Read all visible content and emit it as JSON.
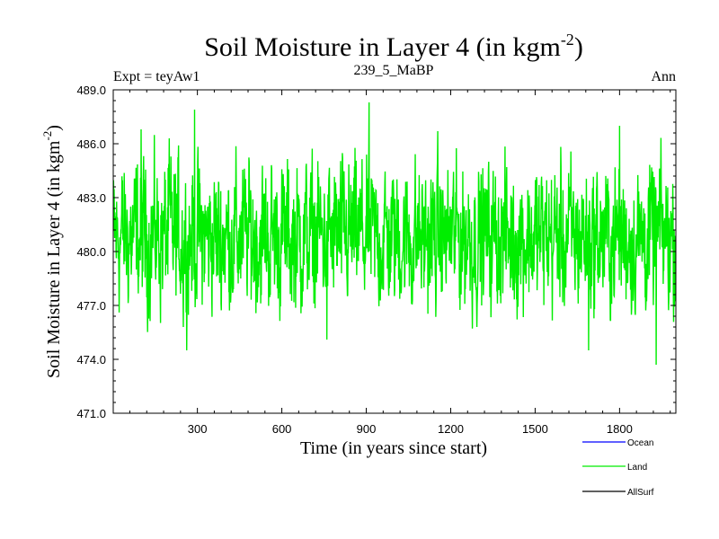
{
  "chart_data": {
    "type": "line",
    "title_main": "Soil Moisture in Layer 4 (in kgm",
    "title_sup": "-2",
    "title_end": ")",
    "subtitle_left": "Expt = teyAw1",
    "subtitle_center": "239_5_MaBP",
    "subtitle_right": "Ann",
    "xlabel": "Time (in years since start)",
    "ylabel_main": "Soil Moisture in Layer 4 (in kgm",
    "ylabel_sup": "-2",
    "ylabel_end": ")",
    "xlim": [
      1,
      2000
    ],
    "ylim": [
      471.0,
      489.0
    ],
    "xticks": [
      300,
      600,
      900,
      1200,
      1500,
      1800
    ],
    "yticks": [
      "471.0",
      "474.0",
      "477.0",
      "480.0",
      "483.0",
      "486.0",
      "489.0"
    ],
    "series": [
      {
        "name": "Ocean",
        "color": "#0000ff",
        "values": []
      },
      {
        "name": "Land",
        "color": "#00ee00",
        "mean": 480.8,
        "min": 473.7,
        "max": 488.3,
        "peaks": [
          [
            100,
            486.8
          ],
          [
            200,
            486.3
          ],
          [
            290,
            487.9
          ],
          [
            910,
            488.3
          ],
          [
            1800,
            487.0
          ],
          [
            1930,
            473.7
          ],
          [
            1690,
            474.5
          ],
          [
            760,
            475.1
          ],
          [
            250,
            475.8
          ]
        ]
      },
      {
        "name": "AllSurf",
        "color": "#000000",
        "values": []
      }
    ]
  }
}
